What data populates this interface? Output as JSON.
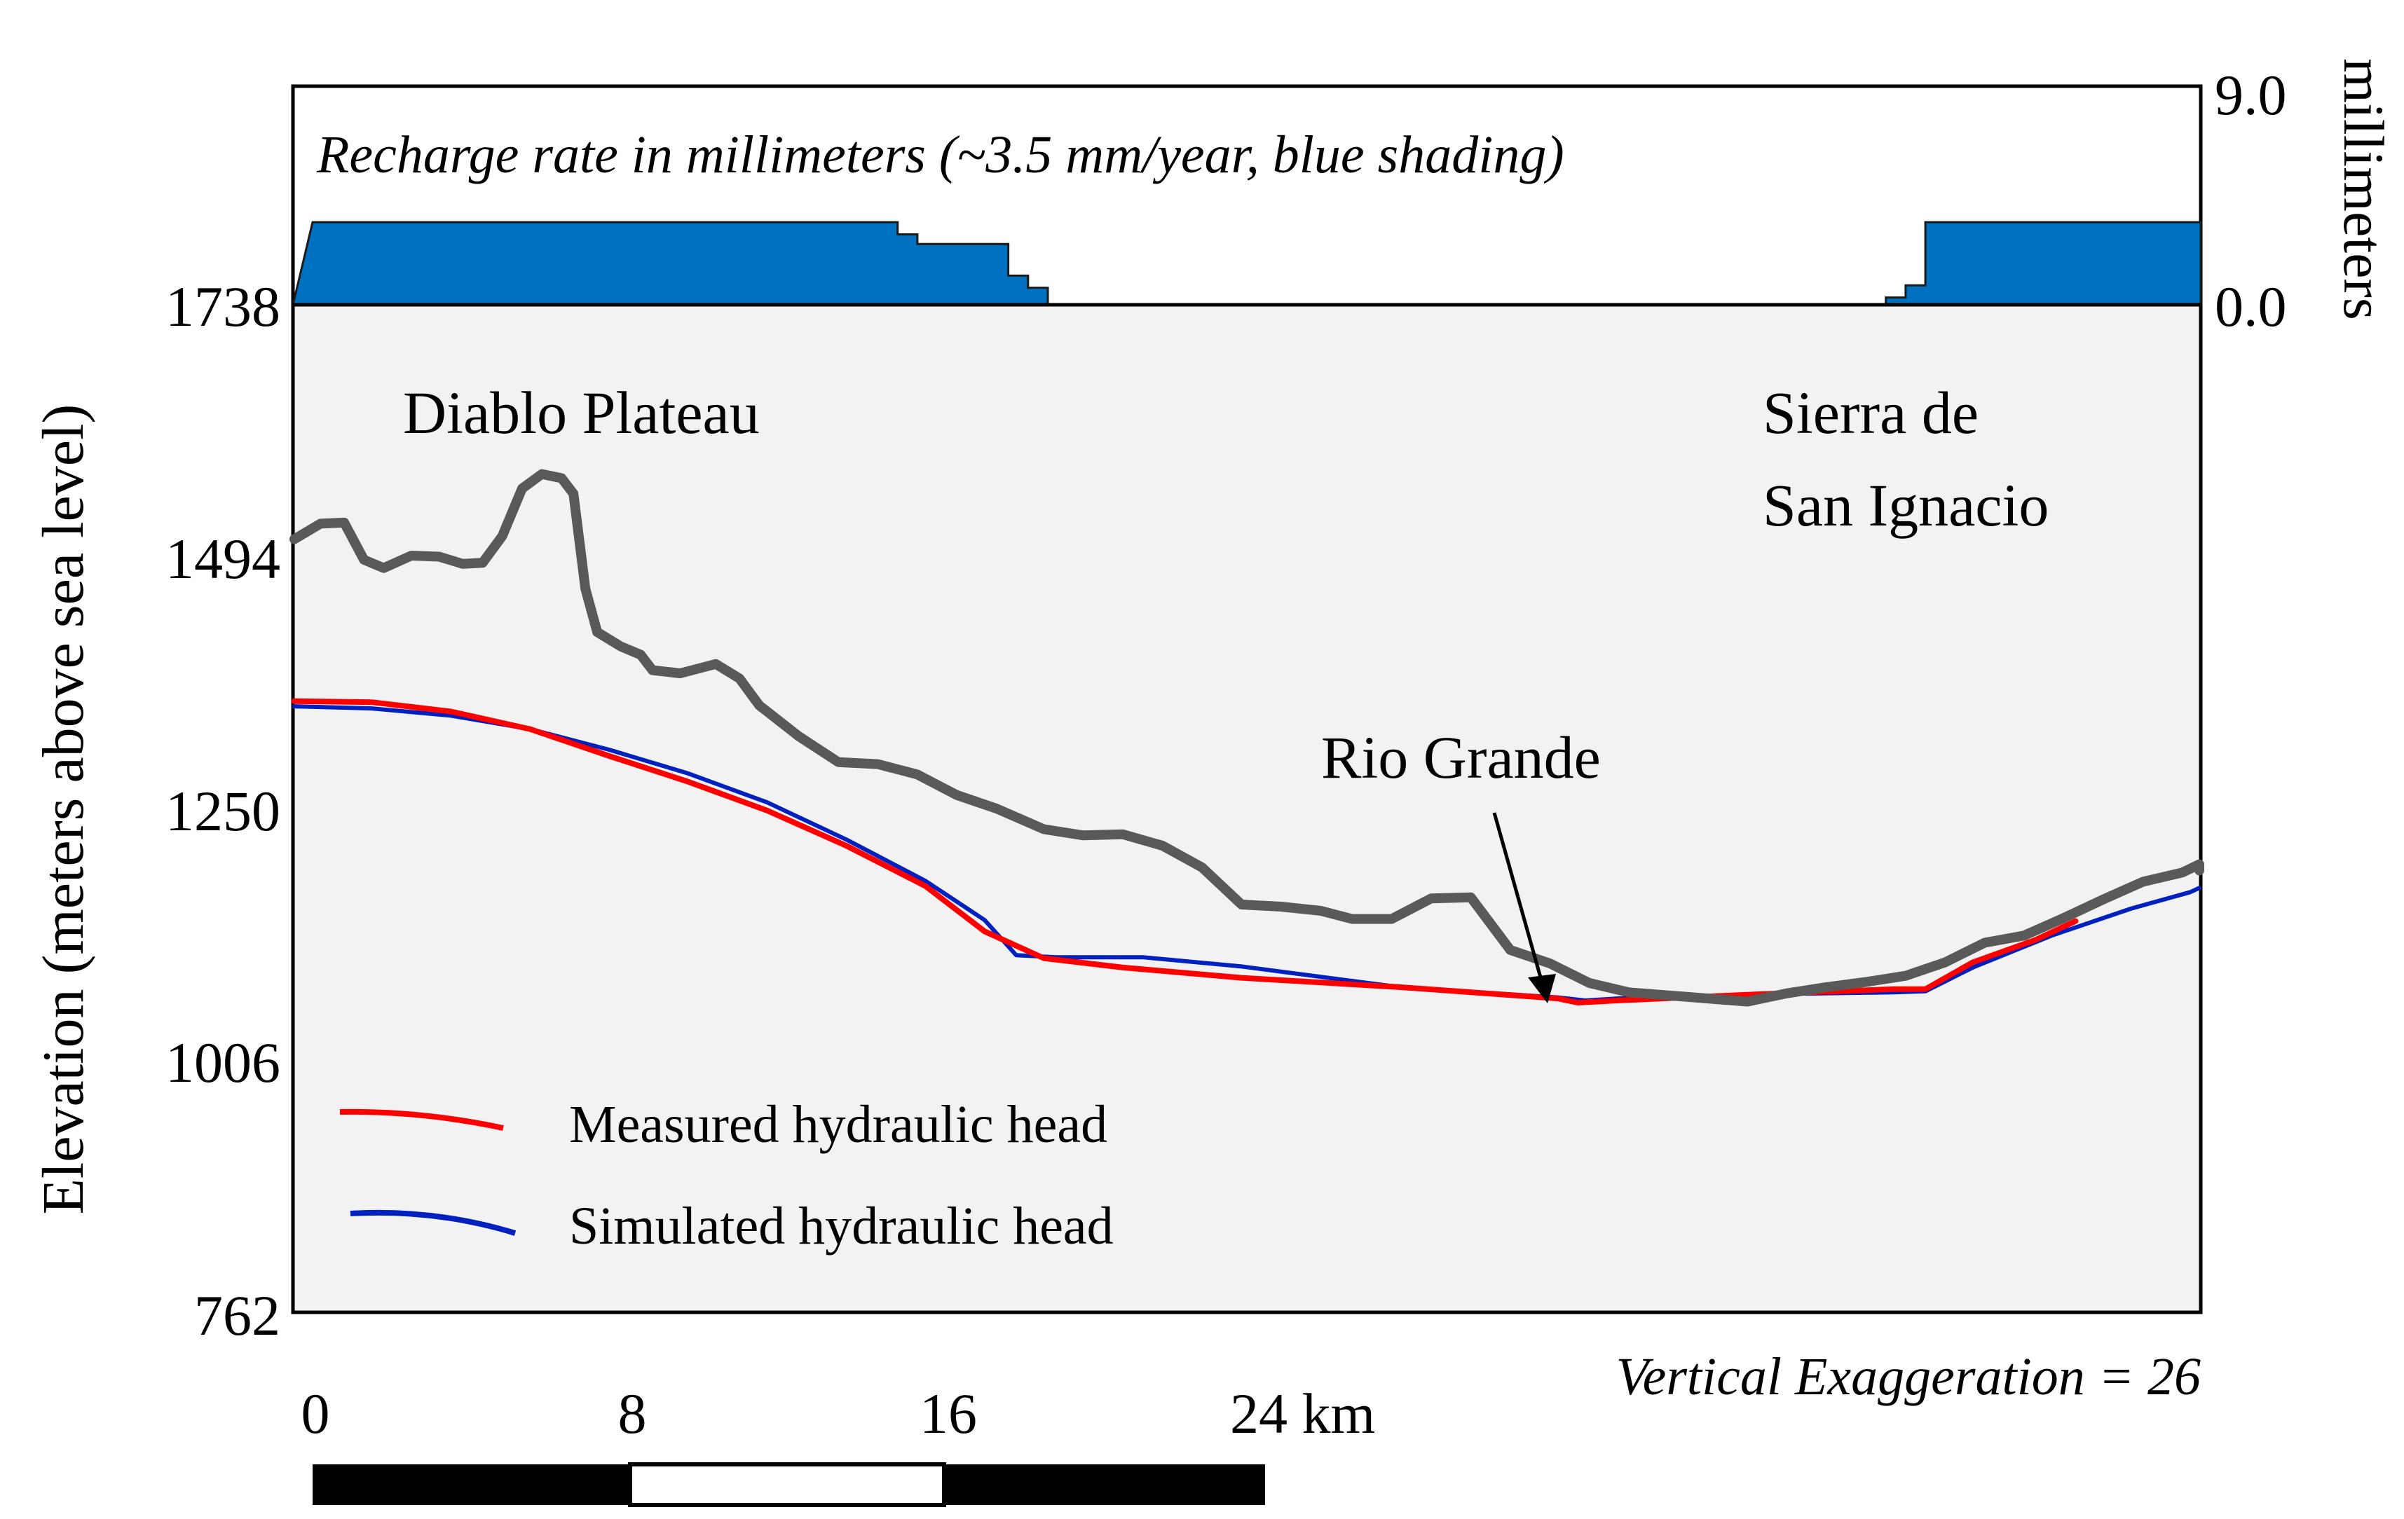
{
  "chart_data": {
    "type": "line",
    "x_unit": "km",
    "recharge_panel": {
      "title": "Recharge rate in millimeters (~3.5 mm/year, blue shading)",
      "ylabel": "millimeters",
      "yticks": [
        "9.0",
        "0.0"
      ],
      "ylim": [
        0,
        9
      ],
      "color": "#0070c0",
      "steps": [
        {
          "x": 0.0,
          "y": 3.4
        },
        {
          "x": 14.8,
          "y": 3.4
        },
        {
          "x": 14.8,
          "y": 2.9
        },
        {
          "x": 15.3,
          "y": 2.9
        },
        {
          "x": 15.3,
          "y": 2.5
        },
        {
          "x": 17.6,
          "y": 2.5
        },
        {
          "x": 17.6,
          "y": 1.2
        },
        {
          "x": 18.1,
          "y": 1.2
        },
        {
          "x": 18.1,
          "y": 0.7
        },
        {
          "x": 18.6,
          "y": 0.7
        },
        {
          "x": 18.6,
          "y": 0.0
        },
        {
          "x": 39.8,
          "y": 0.0
        },
        {
          "x": 39.8,
          "y": 0.3
        },
        {
          "x": 40.3,
          "y": 0.3
        },
        {
          "x": 40.3,
          "y": 0.8
        },
        {
          "x": 40.8,
          "y": 0.8
        },
        {
          "x": 40.8,
          "y": 3.4
        },
        {
          "x": 48.8,
          "y": 3.4
        }
      ]
    },
    "profile_panel": {
      "ylabel": "Elevation (meters above sea level)",
      "yticks": [
        "1738",
        "1494",
        "1250",
        "1006",
        "762"
      ],
      "ylim": [
        762,
        1738
      ],
      "xlim": [
        -0.5,
        48.8
      ],
      "surface_color": "#595959",
      "annotations": {
        "left": "Diablo Plateau",
        "right_line1": "Sierra de",
        "right_line2": "San Ignacio",
        "river": "Rio Grande"
      },
      "series": [
        {
          "name": "Measured hydraulic head",
          "color": "#ff0000",
          "points": [
            [
              -0.5,
              1354
            ],
            [
              1.5,
              1353
            ],
            [
              3.5,
              1344
            ],
            [
              5.5,
              1327
            ],
            [
              7.5,
              1301
            ],
            [
              9.5,
              1276
            ],
            [
              11.5,
              1248
            ],
            [
              13.5,
              1214
            ],
            [
              15.5,
              1175
            ],
            [
              17,
              1131
            ],
            [
              18.5,
              1105
            ],
            [
              20.5,
              1096
            ],
            [
              23.5,
              1086
            ],
            [
              27.5,
              1077
            ],
            [
              31.5,
              1066
            ],
            [
              32,
              1062
            ],
            [
              33,
              1064
            ],
            [
              36.5,
              1070
            ],
            [
              40,
              1075
            ],
            [
              40.8,
              1075
            ],
            [
              42,
              1101
            ],
            [
              43.6,
              1123
            ],
            [
              44.6,
              1141
            ]
          ]
        },
        {
          "name": "Simulated hydraulic head",
          "color": "#0020c0",
          "points": [
            [
              -0.5,
              1349
            ],
            [
              1.5,
              1347
            ],
            [
              3.5,
              1340
            ],
            [
              5.5,
              1327
            ],
            [
              7.5,
              1307
            ],
            [
              9.5,
              1284
            ],
            [
              11.5,
              1256
            ],
            [
              13.5,
              1220
            ],
            [
              15.5,
              1180
            ],
            [
              17,
              1142
            ],
            [
              17.8,
              1108
            ],
            [
              18.8,
              1106
            ],
            [
              21,
              1106
            ],
            [
              23.5,
              1097
            ],
            [
              27.5,
              1077
            ],
            [
              31.5,
              1067
            ],
            [
              32.2,
              1064
            ],
            [
              33,
              1066
            ],
            [
              36.5,
              1070
            ],
            [
              40,
              1072
            ],
            [
              40.8,
              1073
            ],
            [
              42,
              1096
            ],
            [
              44,
              1127
            ],
            [
              46,
              1153
            ],
            [
              47.5,
              1169
            ],
            [
              48.8,
              1173
            ]
          ]
        },
        {
          "name": "Ground surface",
          "color": "#595959",
          "points": [
            [
              -0.5,
              1511
            ],
            [
              0.2,
              1526
            ],
            [
              0.8,
              1527
            ],
            [
              1.3,
              1491
            ],
            [
              1.8,
              1483
            ],
            [
              2.5,
              1495
            ],
            [
              3.2,
              1494
            ],
            [
              3.8,
              1487
            ],
            [
              4.3,
              1488
            ],
            [
              4.8,
              1514
            ],
            [
              5.3,
              1560
            ],
            [
              5.8,
              1574
            ],
            [
              6.3,
              1570
            ],
            [
              6.6,
              1555
            ],
            [
              6.9,
              1463
            ],
            [
              7.2,
              1421
            ],
            [
              7.8,
              1407
            ],
            [
              8.3,
              1399
            ],
            [
              8.6,
              1384
            ],
            [
              9.3,
              1381
            ],
            [
              10.2,
              1390
            ],
            [
              10.8,
              1376
            ],
            [
              11.3,
              1350
            ],
            [
              12.3,
              1320
            ],
            [
              13.3,
              1295
            ],
            [
              14.3,
              1293
            ],
            [
              15.3,
              1283
            ],
            [
              16.3,
              1263
            ],
            [
              17.3,
              1250
            ],
            [
              18.5,
              1230
            ],
            [
              19.5,
              1224
            ],
            [
              20.5,
              1225
            ],
            [
              21.5,
              1214
            ],
            [
              22.5,
              1193
            ],
            [
              23.5,
              1157
            ],
            [
              24.5,
              1155
            ],
            [
              25.5,
              1151
            ],
            [
              26.3,
              1143
            ],
            [
              27.3,
              1143
            ],
            [
              28.3,
              1163
            ],
            [
              29.3,
              1164
            ],
            [
              30.3,
              1113
            ],
            [
              31.3,
              1100
            ],
            [
              32.3,
              1081
            ],
            [
              33.3,
              1072
            ],
            [
              34.3,
              1069
            ],
            [
              35.3,
              1066
            ],
            [
              36.3,
              1063
            ],
            [
              37.3,
              1071
            ],
            [
              38.3,
              1077
            ],
            [
              39.3,
              1082
            ],
            [
              40.3,
              1088
            ],
            [
              41.3,
              1101
            ],
            [
              42.3,
              1120
            ],
            [
              43.3,
              1127
            ],
            [
              44.3,
              1144
            ],
            [
              45.3,
              1162
            ],
            [
              46.3,
              1179
            ],
            [
              47.3,
              1188
            ],
            [
              48.3,
              1196
            ],
            [
              49.0,
              1190
            ]
          ]
        }
      ]
    },
    "legend": {
      "measured": "Measured hydraulic head",
      "simulated": "Simulated hydraulic head"
    },
    "vertical_exaggeration": "Vertical Exaggeration = 26",
    "scale_bar": {
      "labels": [
        "0",
        "8",
        "16",
        "24 km"
      ],
      "ticks_km": [
        0,
        8,
        16,
        24
      ]
    }
  }
}
